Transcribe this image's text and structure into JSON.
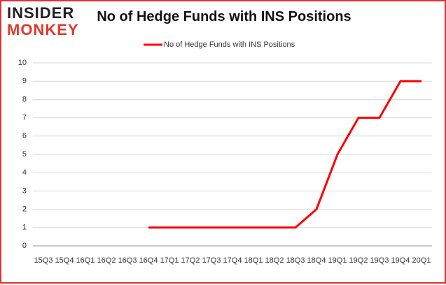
{
  "logo": {
    "line1": "INSIDER",
    "line2": "MONKEY"
  },
  "chart_data": {
    "type": "line",
    "title": "No of Hedge Funds with INS Positions",
    "categories": [
      "15Q3",
      "15Q4",
      "16Q1",
      "16Q2",
      "16Q3",
      "16Q4",
      "17Q1",
      "17Q2",
      "17Q3",
      "17Q4",
      "18Q1",
      "18Q2",
      "18Q3",
      "18Q4",
      "19Q1",
      "19Q2",
      "19Q3",
      "19Q4",
      "20Q1"
    ],
    "series": [
      {
        "name": "No of Hedge Funds with INS Positions",
        "color": "#ff0000",
        "values": [
          null,
          null,
          null,
          null,
          null,
          1,
          1,
          1,
          1,
          1,
          1,
          1,
          1,
          2,
          5,
          7,
          7,
          9,
          9
        ]
      }
    ],
    "ylim": [
      0,
      10
    ],
    "yticks": [
      0,
      1,
      2,
      3,
      4,
      5,
      6,
      7,
      8,
      9,
      10
    ],
    "grid": true,
    "legend": "top"
  }
}
